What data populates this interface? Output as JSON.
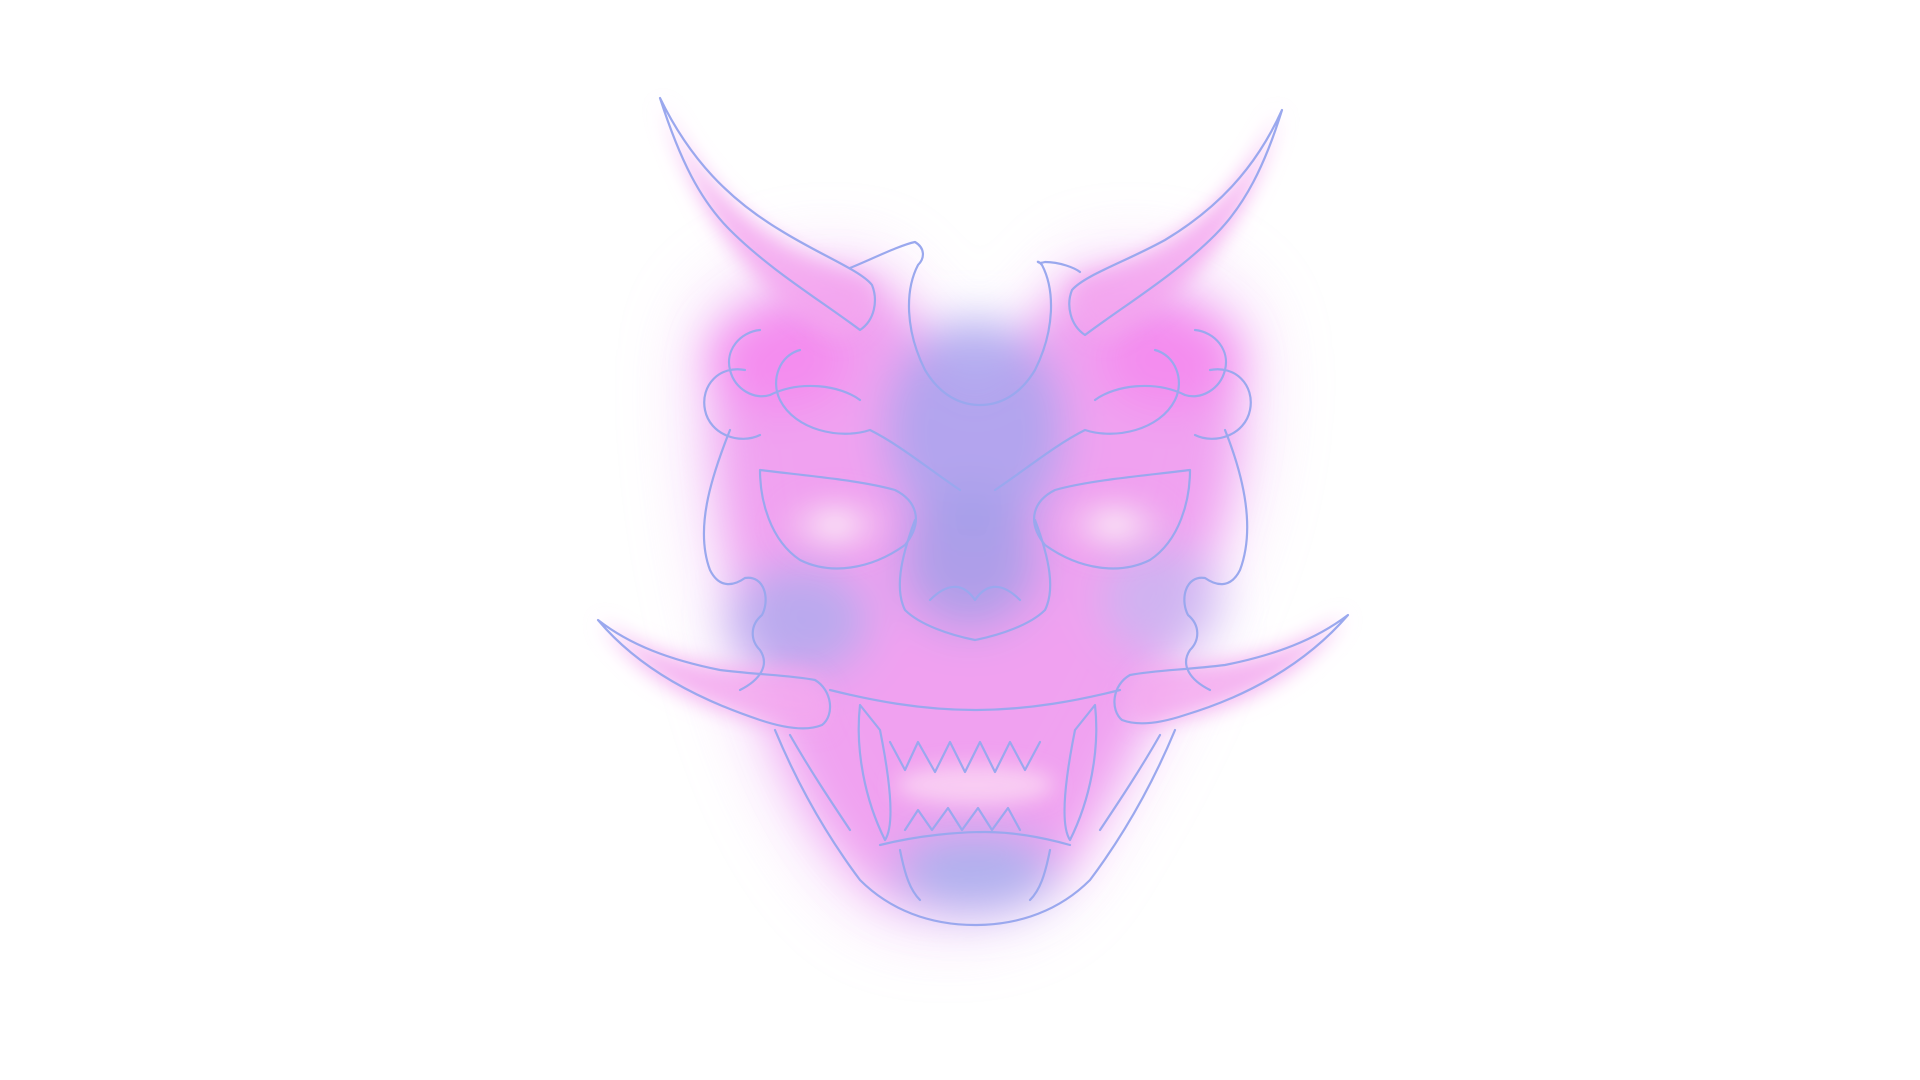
{
  "scene": {
    "subject": "oni-mask-icon",
    "colors": {
      "background": "#ffffff",
      "glow_pink": "#f18cf2",
      "glow_magenta": "#f07be8",
      "glow_violet": "#b7a2f0",
      "glow_blue": "#9da3ea",
      "outline": "#9aa8ee",
      "highlight": "#fbe6f6"
    }
  }
}
